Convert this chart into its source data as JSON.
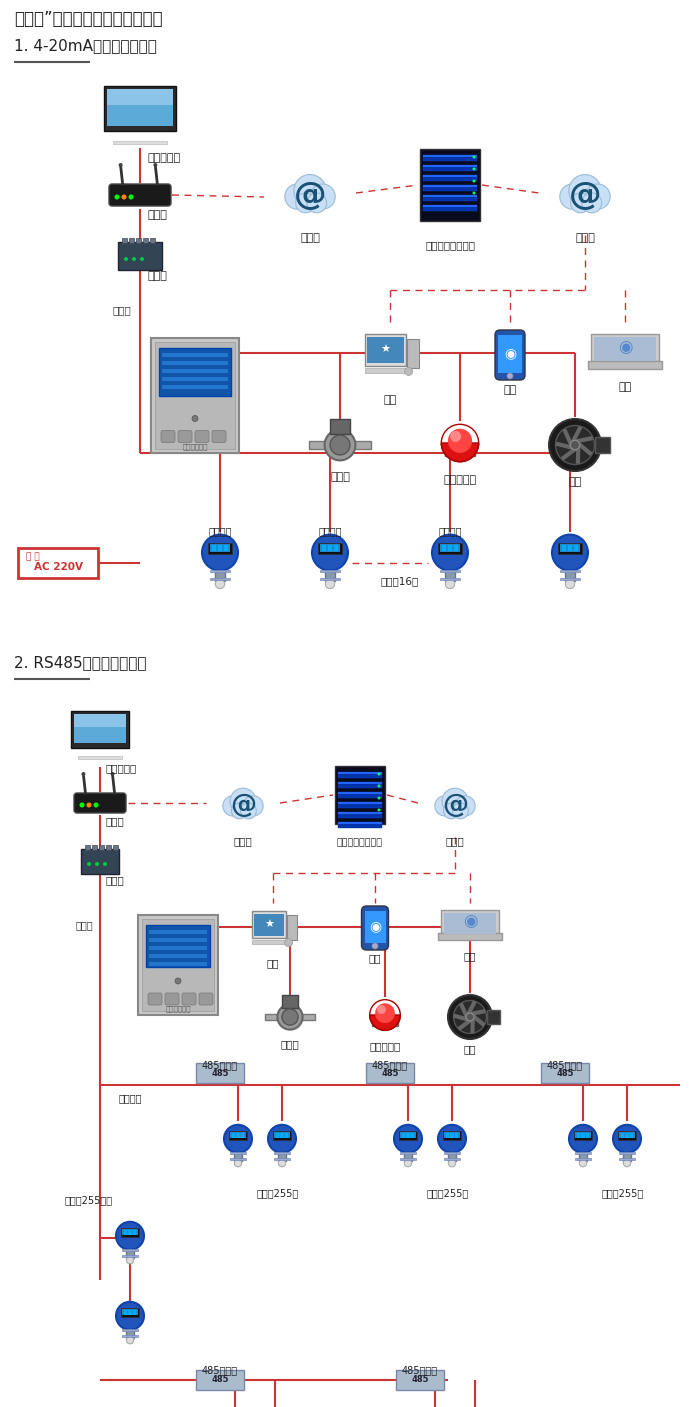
{
  "title": "机气猫”系列带显示固定式检测仪",
  "section1_title": "1. 4-20mA信号连接系统图",
  "section2_title": "2. RS485信号连接系统图",
  "figsize": [
    7.0,
    14.07
  ],
  "dpi": 100,
  "red": "#cc3333",
  "dashed_red": "#cc3333",
  "dark": "#222222",
  "gray": "#888888",
  "lightgray": "#cccccc",
  "blue": "#3366cc",
  "cloud_blue": "#aacce8",
  "white": "#ffffff",
  "s1_labels": {
    "pc": "单机版电脑",
    "router": "路由器",
    "internet1": "互联网",
    "server": "安帕尔网络服务器",
    "internet2": "互联网",
    "converter": "转换器",
    "comm": "通讯线",
    "desktop": "电脑",
    "phone": "手机",
    "terminal": "终端",
    "solenoid": "电磁阀",
    "alarm": "声光报警器",
    "fan": "风机",
    "ac": "AC 220V",
    "sig1": "信号输出",
    "sig2": "信号输出",
    "sig3": "信号输出",
    "connect16": "可连接16个"
  },
  "s2_labels": {
    "pc": "单机版电脑",
    "router": "路由器",
    "internet1": "互联网",
    "server": "安帕尔网络服务器",
    "internet2": "互联网",
    "converter": "转换器",
    "comm": "通讯线",
    "desktop": "电脑",
    "phone": "手机",
    "terminal": "终端",
    "solenoid": "电磁阀",
    "alarm": "声光报警器",
    "fan": "风机",
    "repeater": "485中继器",
    "connect255": "可连接255台",
    "sig_out": "信号输出"
  }
}
